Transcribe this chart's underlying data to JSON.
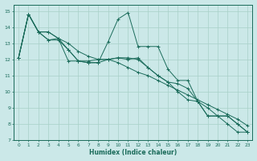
{
  "xlabel": "Humidex (Indice chaleur)",
  "bg_color": "#cbe8e8",
  "line_color": "#1a6b5a",
  "grid_color": "#a8d0c8",
  "xlim": [
    -0.5,
    23.5
  ],
  "ylim": [
    7,
    15.4
  ],
  "xticks": [
    0,
    1,
    2,
    3,
    4,
    5,
    6,
    7,
    8,
    9,
    10,
    11,
    12,
    13,
    14,
    15,
    16,
    17,
    18,
    19,
    20,
    21,
    22,
    23
  ],
  "yticks": [
    7,
    8,
    9,
    10,
    11,
    12,
    13,
    14,
    15
  ],
  "series": [
    [
      12.1,
      14.8,
      13.7,
      13.7,
      13.3,
      11.9,
      11.9,
      11.8,
      11.8,
      13.1,
      14.5,
      14.9,
      12.8,
      12.8,
      12.8,
      11.4,
      10.7,
      10.7,
      9.4,
      8.5,
      8.5,
      8.0,
      7.5,
      7.5
    ],
    [
      12.1,
      14.8,
      13.7,
      13.2,
      13.2,
      12.6,
      11.9,
      11.8,
      11.8,
      12.0,
      12.1,
      12.0,
      12.1,
      11.5,
      11.0,
      10.6,
      10.5,
      10.2,
      9.4,
      8.5,
      8.5,
      8.5,
      8.0,
      7.5
    ],
    [
      12.1,
      14.8,
      13.7,
      13.2,
      13.3,
      12.6,
      11.9,
      11.9,
      12.0,
      12.0,
      12.1,
      12.1,
      12.0,
      11.5,
      11.0,
      10.6,
      10.0,
      9.5,
      9.4,
      9.0,
      8.5,
      8.5,
      8.0,
      7.5
    ],
    [
      12.1,
      14.8,
      13.7,
      13.7,
      13.3,
      13.0,
      12.5,
      12.2,
      12.0,
      12.0,
      11.8,
      11.5,
      11.2,
      11.0,
      10.7,
      10.4,
      10.1,
      9.8,
      9.5,
      9.2,
      8.9,
      8.6,
      8.3,
      7.9
    ]
  ]
}
